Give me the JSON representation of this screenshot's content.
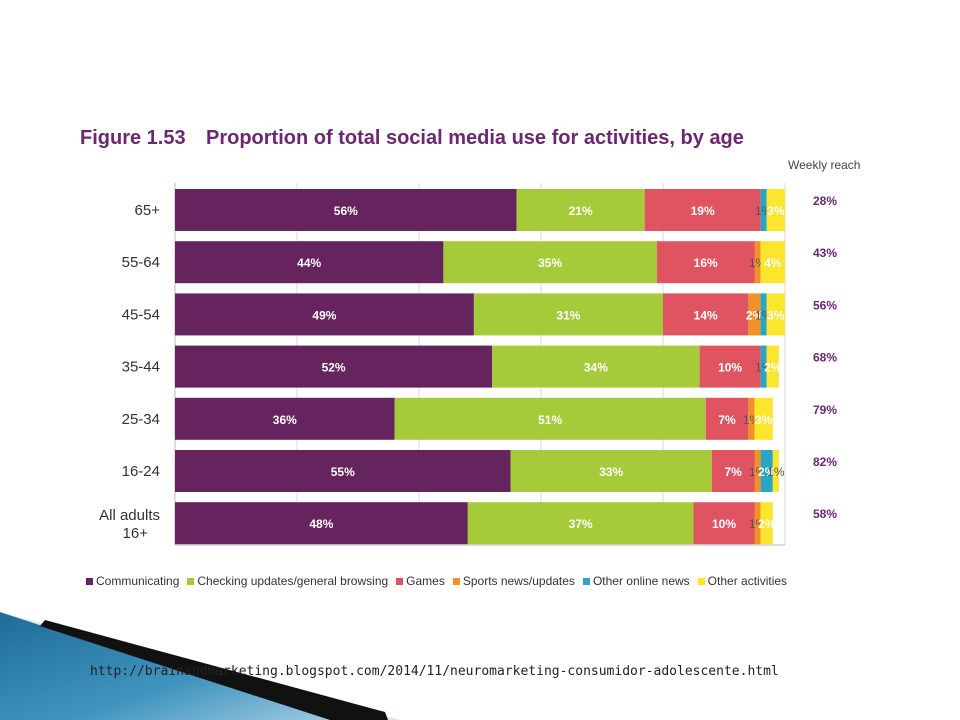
{
  "figure": {
    "number": "Figure 1.53",
    "title": "Proportion of total social media use for activities, by age",
    "reach_heading": "Weekly reach"
  },
  "colors": {
    "Communicating": "#66245e",
    "Checking updates/general browsing": "#a6cb3a",
    "Games": "#e05462",
    "Sports news/updates": "#f0912a",
    "Other online news": "#2ba5c3",
    "Other activities": "#fbe62d"
  },
  "chart_data": {
    "type": "bar",
    "orientation": "horizontal",
    "stacked": true,
    "title": "Proportion of total social media use for activities, by age",
    "xlim": [
      0,
      100
    ],
    "grid": true,
    "legend_position": "bottom",
    "categories": [
      "65+",
      "55-64",
      "45-54",
      "35-44",
      "25-34",
      "16-24",
      "All adults 16+"
    ],
    "series": [
      {
        "name": "Communicating",
        "values": [
          56,
          44,
          49,
          52,
          36,
          55,
          48
        ]
      },
      {
        "name": "Checking updates/general browsing",
        "values": [
          21,
          35,
          31,
          34,
          51,
          33,
          37
        ]
      },
      {
        "name": "Games",
        "values": [
          19,
          16,
          14,
          10,
          7,
          7,
          10
        ]
      },
      {
        "name": "Sports news/updates",
        "values": [
          null,
          1,
          2,
          null,
          1,
          1,
          1
        ]
      },
      {
        "name": "Other online news",
        "values": [
          1,
          null,
          1,
          1,
          null,
          2,
          null
        ]
      },
      {
        "name": "Other activities",
        "values": [
          3,
          4,
          3,
          2,
          3,
          1,
          2
        ]
      }
    ],
    "weekly_reach": [
      "28%",
      "43%",
      "56%",
      "68%",
      "79%",
      "82%",
      "58%"
    ]
  },
  "source": {
    "url": "http://brainandmarketing.blogspot.com/2014/11/neuromarketing-consumidor-adolescente.html"
  }
}
